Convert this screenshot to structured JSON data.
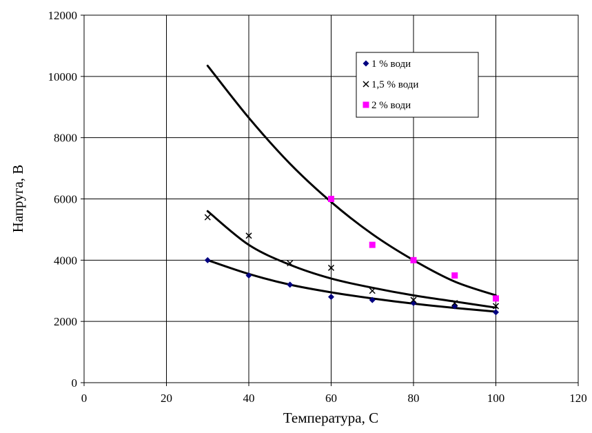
{
  "chart_data": {
    "type": "scatter",
    "title": "",
    "xlabel": "Температура, С",
    "ylabel": "Напруга, В",
    "xlim": [
      0,
      120
    ],
    "ylim": [
      0,
      12000
    ],
    "x_ticks": [
      0,
      20,
      40,
      60,
      80,
      100,
      120
    ],
    "y_ticks": [
      0,
      2000,
      4000,
      6000,
      8000,
      10000,
      12000
    ],
    "grid": true,
    "legend_position": "top-right",
    "series": [
      {
        "name": "1 % води",
        "marker": "diamond",
        "color": "#000080",
        "x": [
          30,
          40,
          50,
          60,
          70,
          80,
          90,
          100
        ],
        "y": [
          4000,
          3500,
          3200,
          2800,
          2700,
          2600,
          2500,
          2300
        ]
      },
      {
        "name": "1,5 % води",
        "marker": "x",
        "color": "#000000",
        "x": [
          30,
          40,
          50,
          60,
          70,
          80,
          90,
          100
        ],
        "y": [
          5400,
          4800,
          3900,
          3750,
          3000,
          2700,
          2600,
          2500
        ]
      },
      {
        "name": "2 % води",
        "marker": "square",
        "color": "#ff00ff",
        "x": [
          60,
          70,
          80,
          90,
          100
        ],
        "y": [
          6000,
          4500,
          4000,
          3500,
          2750
        ]
      }
    ],
    "trendlines": [
      {
        "series": "1 % води",
        "x": [
          30,
          40,
          50,
          60,
          70,
          80,
          90,
          100
        ],
        "y": [
          4000,
          3550,
          3200,
          2950,
          2750,
          2580,
          2440,
          2320
        ]
      },
      {
        "series": "1,5 % води",
        "x": [
          30,
          40,
          50,
          60,
          70,
          80,
          90,
          100
        ],
        "y": [
          5600,
          4500,
          3850,
          3400,
          3100,
          2850,
          2650,
          2450
        ]
      },
      {
        "series": "2 % води",
        "x": [
          30,
          40,
          50,
          60,
          70,
          80,
          90,
          100
        ],
        "y": [
          10350,
          8650,
          7150,
          5900,
          4850,
          4000,
          3300,
          2850
        ]
      }
    ]
  }
}
